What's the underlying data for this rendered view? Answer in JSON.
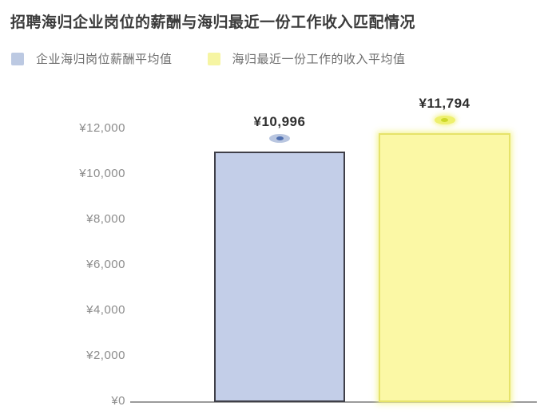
{
  "title": "招聘海归企业岗位的薪酬与海归最近一份工作收入匹配情况",
  "legend": {
    "items": [
      {
        "label": "企业海归岗位薪酬平均值",
        "color": "#bcc9e2"
      },
      {
        "label": "海归最近一份工作的收入平均值",
        "color": "#f6f5a3"
      }
    ]
  },
  "chart_data": {
    "type": "bar",
    "title": "招聘海归企业岗位的薪酬与海归最近一份工作收入匹配情况",
    "categories": [
      "企业海归岗位薪酬平均值",
      "海归最近一份工作的收入平均值"
    ],
    "values": [
      10996,
      11794
    ],
    "value_labels": [
      "¥10,996",
      "¥11,794"
    ],
    "bar_colors": [
      "#c3cee8",
      "#fbf8a5"
    ],
    "bar_border_colors": [
      "#3f3f48",
      "#e6e36a"
    ],
    "bar_glow": [
      false,
      true
    ],
    "markers": [
      {
        "fill": "#b9c6e0",
        "dot": "#4f6fb0"
      },
      {
        "fill": "#eef06e",
        "dot": "#cdd829"
      }
    ],
    "xlabel": "",
    "ylabel": "",
    "ylim": [
      0,
      12000
    ],
    "ytick_values": [
      0,
      2000,
      4000,
      6000,
      8000,
      10000,
      12000
    ],
    "yticks": [
      "¥0",
      "¥2,000",
      "¥4,000",
      "¥6,000",
      "¥8,000",
      "¥10,000",
      "¥12,000"
    ],
    "grid": false,
    "legend_position": "top-left",
    "axis_line_color": "#9b9b9b"
  }
}
